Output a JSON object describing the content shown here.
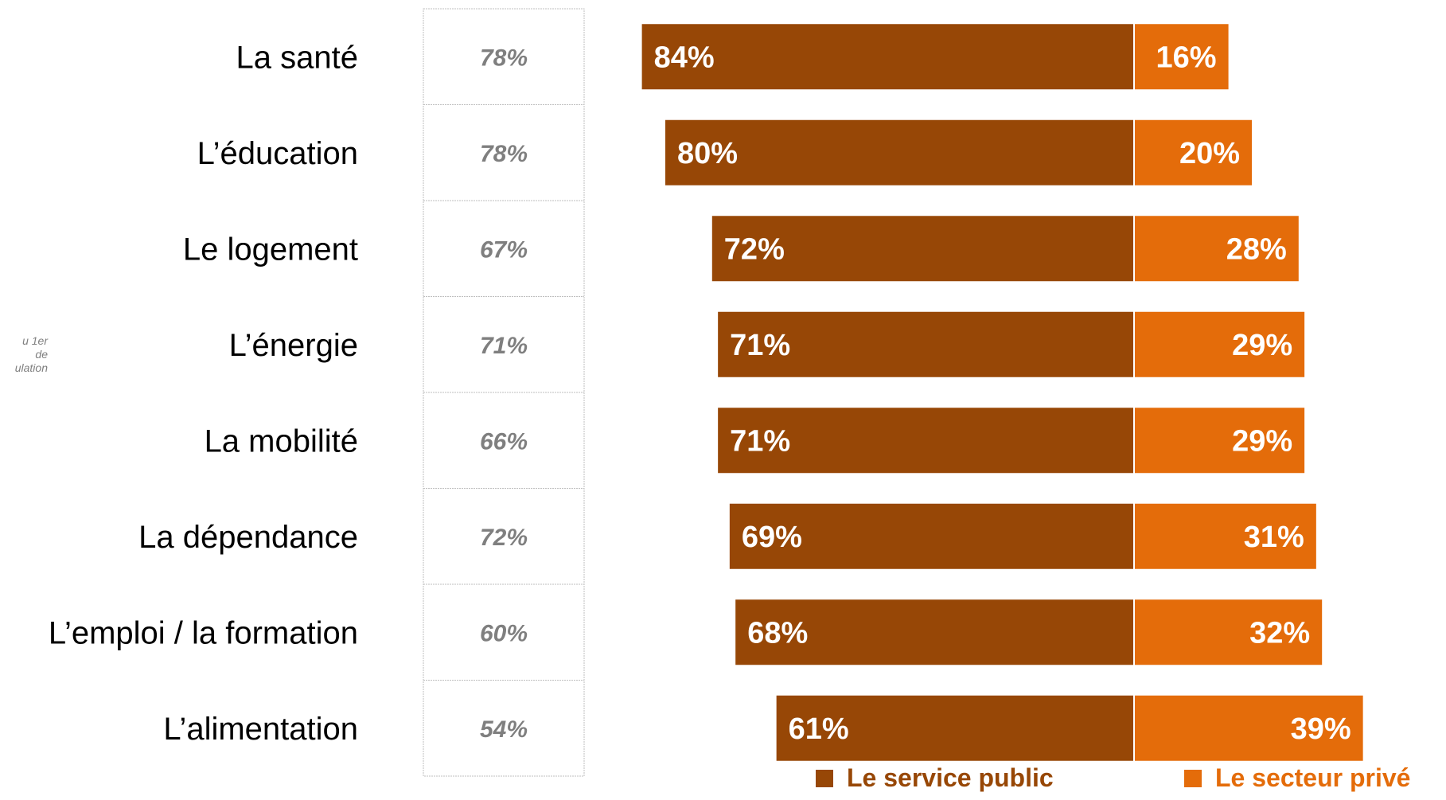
{
  "side_note": "u 1er\nde\nulation",
  "chart_data": {
    "type": "bar",
    "orientation": "horizontal",
    "stacked": true,
    "categories": [
      "La santé",
      "L’éducation",
      "Le logement",
      "L’énergie",
      "La mobilité",
      "La dépendance",
      "L’emploi / la formation",
      "L’alimentation"
    ],
    "middle_column": [
      "78%",
      "78%",
      "67%",
      "71%",
      "66%",
      "72%",
      "60%",
      "54%"
    ],
    "series": [
      {
        "name": "Le service public",
        "values": [
          84,
          80,
          72,
          71,
          71,
          69,
          68,
          61
        ],
        "labels": [
          "84%",
          "80%",
          "72%",
          "71%",
          "71%",
          "69%",
          "68%",
          "61%"
        ],
        "color": "#974706"
      },
      {
        "name": "Le secteur privé",
        "values": [
          16,
          20,
          28,
          29,
          29,
          31,
          32,
          39
        ],
        "labels": [
          "16%",
          "20%",
          "28%",
          "29%",
          "29%",
          "31%",
          "32%",
          "39%"
        ],
        "color": "#E46C0A"
      }
    ],
    "legend": "bottom",
    "grid": false
  }
}
